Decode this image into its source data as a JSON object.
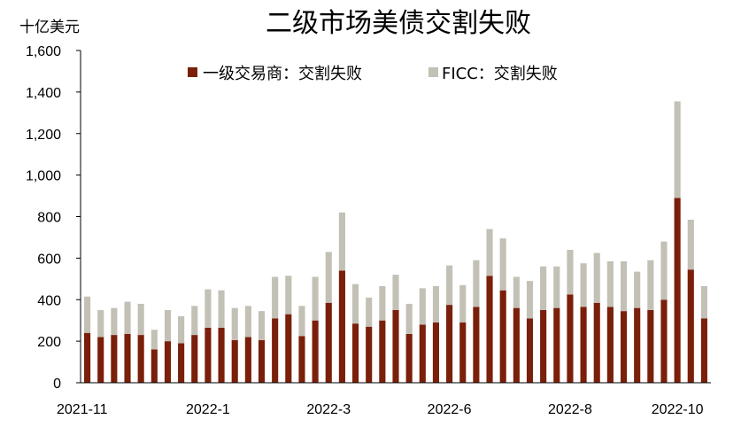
{
  "chart_data": {
    "type": "bar",
    "stacked": true,
    "title": "二级市场美债交割失败",
    "ylabel": "十亿美元",
    "xlabel": "",
    "ylim": [
      0,
      1600
    ],
    "yticks": [
      0,
      200,
      400,
      600,
      800,
      "1,000",
      "1,200",
      "1,400",
      "1,600"
    ],
    "legend_position": "top",
    "x_tick_labels": [
      {
        "label": "2021-11",
        "index": 0
      },
      {
        "label": "2022-1",
        "index": 9
      },
      {
        "label": "2022-3",
        "index": 18
      },
      {
        "label": "2022-6",
        "index": 27
      },
      {
        "label": "2022-8",
        "index": 36
      },
      {
        "label": "2022-10",
        "index": 44
      }
    ],
    "series": [
      {
        "name": "一级交易商：交割失败",
        "color": "#7a1f0a",
        "values": [
          240,
          220,
          230,
          235,
          230,
          160,
          200,
          190,
          230,
          265,
          265,
          205,
          220,
          205,
          310,
          330,
          225,
          300,
          385,
          540,
          285,
          270,
          300,
          350,
          235,
          280,
          290,
          375,
          290,
          365,
          515,
          445,
          360,
          310,
          350,
          360,
          425,
          365,
          385,
          365,
          345,
          360,
          350,
          400,
          890,
          545,
          310
        ]
      },
      {
        "name": "FICC：交割失败",
        "color": "#c3c0b6",
        "values": [
          175,
          130,
          130,
          155,
          150,
          95,
          150,
          130,
          140,
          185,
          180,
          155,
          150,
          140,
          200,
          185,
          145,
          210,
          245,
          280,
          190,
          140,
          165,
          170,
          145,
          175,
          175,
          190,
          180,
          225,
          225,
          250,
          150,
          180,
          210,
          200,
          215,
          210,
          240,
          220,
          240,
          175,
          240,
          280,
          465,
          240,
          155
        ]
      }
    ]
  }
}
